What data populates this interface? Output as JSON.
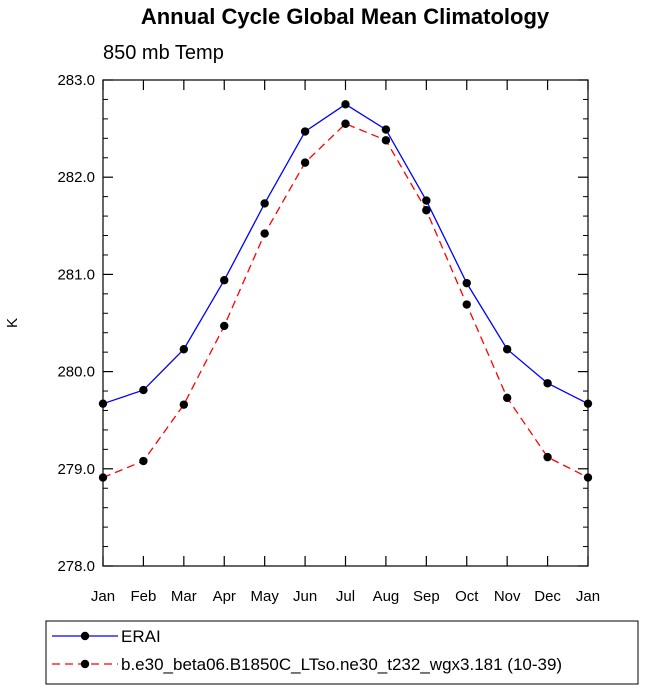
{
  "chart_data": {
    "type": "line",
    "title": "Annual Cycle Global Mean Climatology",
    "subtitle": "850 mb Temp",
    "xlabel": "",
    "ylabel": "K",
    "ylim": [
      278.0,
      283.0
    ],
    "yticks": [
      "278.0",
      "279.0",
      "280.0",
      "281.0",
      "282.0",
      "283.0"
    ],
    "ytick_values": [
      278.0,
      279.0,
      280.0,
      281.0,
      282.0,
      283.0
    ],
    "categories": [
      "Jan",
      "Feb",
      "Mar",
      "Apr",
      "May",
      "Jun",
      "Jul",
      "Aug",
      "Sep",
      "Oct",
      "Nov",
      "Dec",
      "Jan"
    ],
    "grid": false,
    "legend_position": "bottom",
    "series": [
      {
        "name": "ERAI",
        "color": "#0000ff",
        "style": "solid",
        "values": [
          279.67,
          279.81,
          280.23,
          280.94,
          281.73,
          282.47,
          282.75,
          282.49,
          281.76,
          280.91,
          280.23,
          279.88,
          279.67
        ]
      },
      {
        "name": "b.e30_beta06.B1850C_LTso.ne30_t232_wgx3.181 (10-39)",
        "color": "#ff0000",
        "style": "dashed",
        "values": [
          278.91,
          279.08,
          279.66,
          280.47,
          281.42,
          282.15,
          282.55,
          282.38,
          281.66,
          280.69,
          279.73,
          279.12,
          278.91
        ]
      }
    ]
  }
}
